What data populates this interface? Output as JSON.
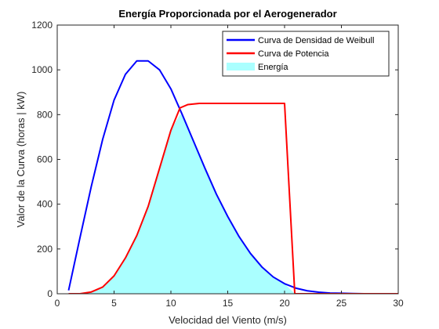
{
  "chart_data": {
    "type": "line",
    "title": "Energía Proporcionada por el Aerogenerador",
    "xlabel": "Velocidad del Viento (m/s)",
    "ylabel": "Valor de la Curva (horas | kW)",
    "xlim": [
      0,
      30
    ],
    "ylim": [
      0,
      1200
    ],
    "xticks": [
      0,
      5,
      10,
      15,
      20,
      25,
      30
    ],
    "yticks": [
      0,
      200,
      400,
      600,
      800,
      1000,
      1200
    ],
    "grid": false,
    "legend_position": "top-right",
    "series": [
      {
        "name": "Curva de Densidad de Weibull",
        "type": "line",
        "color": "#0000ff",
        "x": [
          1,
          2,
          3,
          4,
          5,
          6,
          7,
          8,
          9,
          10,
          11,
          12,
          13,
          14,
          15,
          16,
          17,
          18,
          19,
          20,
          21,
          22,
          23,
          24,
          25,
          26,
          27,
          28.5
        ],
        "values": [
          15,
          250,
          480,
          690,
          865,
          980,
          1040,
          1040,
          1000,
          915,
          800,
          680,
          560,
          445,
          345,
          255,
          180,
          120,
          75,
          45,
          25,
          13,
          7,
          3,
          2,
          1,
          0,
          0
        ]
      },
      {
        "name": "Curva de Potencia",
        "type": "line",
        "color": "#ff0000",
        "x": [
          1,
          2,
          3,
          4,
          5,
          6,
          7,
          8,
          9,
          10,
          10.8,
          11.5,
          12.5,
          13,
          14,
          15,
          16,
          17,
          18,
          19,
          20,
          20.9,
          21,
          22,
          23,
          24,
          25,
          26,
          27,
          28,
          29,
          30
        ],
        "values": [
          0,
          0,
          8,
          30,
          80,
          160,
          260,
          390,
          560,
          730,
          830,
          845,
          850,
          850,
          850,
          850,
          850,
          850,
          850,
          850,
          850,
          0,
          0,
          0,
          0,
          0,
          0,
          0,
          0,
          0,
          0,
          0
        ]
      },
      {
        "name": "Energía",
        "type": "area",
        "color": "#aaffff",
        "x": [
          1,
          2,
          3,
          4,
          5,
          6,
          7,
          8,
          9,
          10,
          10.8,
          11,
          12,
          13,
          14,
          15,
          16,
          17,
          18,
          19,
          20,
          20.9,
          21
        ],
        "values": [
          0,
          0,
          8,
          30,
          80,
          160,
          260,
          390,
          560,
          730,
          800,
          800,
          680,
          560,
          445,
          345,
          255,
          180,
          120,
          75,
          45,
          0,
          0
        ]
      }
    ]
  }
}
